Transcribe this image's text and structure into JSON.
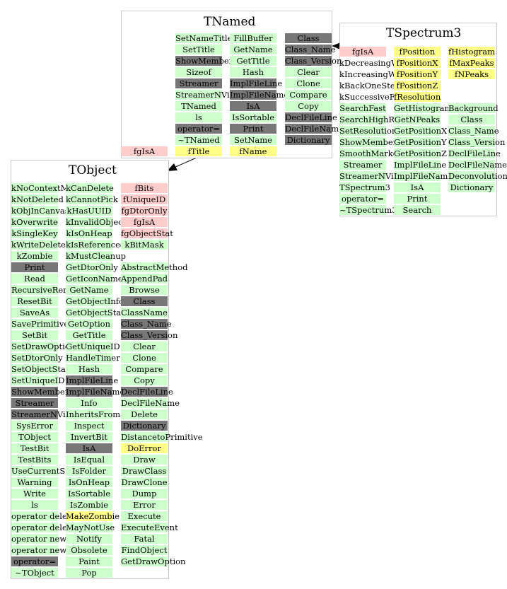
{
  "colors": {
    "method": "#ccffcc",
    "inherited_dark": "#777777",
    "data_member_private": "#ffcccc",
    "data_member": "#ffff88",
    "border": "#c8c8c8"
  },
  "classes": {
    "TNamed": {
      "title": "TNamed",
      "col1": [
        {
          "t": "SetNameTitle",
          "k": "g"
        },
        {
          "t": "SetTitle",
          "k": "g"
        },
        {
          "t": "ShowMembers",
          "k": "d"
        },
        {
          "t": "Sizeof",
          "k": "g"
        },
        {
          "t": "Streamer",
          "k": "d"
        },
        {
          "t": "StreamerNVirtual",
          "k": "g"
        },
        {
          "t": "TNamed",
          "k": "g"
        },
        {
          "t": "ls",
          "k": "g"
        },
        {
          "t": "operator=",
          "k": "d"
        },
        {
          "t": "~TNamed",
          "k": "g"
        }
      ],
      "col2": [
        {
          "t": "FillBuffer",
          "k": "g"
        },
        {
          "t": "GetName",
          "k": "g"
        },
        {
          "t": "GetTitle",
          "k": "g"
        },
        {
          "t": "Hash",
          "k": "g"
        },
        {
          "t": "ImplFileLine",
          "k": "d"
        },
        {
          "t": "ImplFileName",
          "k": "d"
        },
        {
          "t": "IsA",
          "k": "d"
        },
        {
          "t": "IsSortable",
          "k": "g"
        },
        {
          "t": "Print",
          "k": "d"
        },
        {
          "t": "SetName",
          "k": "g"
        }
      ],
      "col3": [
        {
          "t": "Class",
          "k": "d"
        },
        {
          "t": "Class_Name",
          "k": "d"
        },
        {
          "t": "Class_Version",
          "k": "d"
        },
        {
          "t": "Clear",
          "k": "g"
        },
        {
          "t": "Clone",
          "k": "g"
        },
        {
          "t": "Compare",
          "k": "g"
        },
        {
          "t": "Copy",
          "k": "g"
        },
        {
          "t": "DeclFileLine",
          "k": "d"
        },
        {
          "t": "DeclFileName",
          "k": "d"
        },
        {
          "t": "Dictionary",
          "k": "d"
        }
      ],
      "bottom": [
        {
          "t": "fgIsA",
          "k": "r"
        },
        {
          "t": "fTitle",
          "k": "y"
        },
        {
          "t": "fName",
          "k": "y"
        }
      ]
    },
    "TSpectrum3": {
      "title": "TSpectrum3",
      "col1": [
        {
          "t": "fgIsA",
          "k": "r"
        },
        {
          "t": "kDecreasingWindow",
          "k": "n"
        },
        {
          "t": "kIncreasingWindow",
          "k": "n"
        },
        {
          "t": "kBackOneStepFiltering",
          "k": "n"
        },
        {
          "t": "kSuccessiveFiltering",
          "k": "n"
        },
        {
          "t": "SearchFast",
          "k": "g"
        },
        {
          "t": "SearchHighRes",
          "k": "g"
        },
        {
          "t": "SetResolution",
          "k": "g"
        },
        {
          "t": "ShowMembers",
          "k": "g"
        },
        {
          "t": "SmoothMarkov",
          "k": "g"
        },
        {
          "t": "Streamer",
          "k": "g"
        },
        {
          "t": "StreamerNVirtual",
          "k": "g"
        },
        {
          "t": "TSpectrum3",
          "k": "g"
        },
        {
          "t": "operator=",
          "k": "g"
        },
        {
          "t": "~TSpectrum3",
          "k": "g"
        }
      ],
      "col2": [
        {
          "t": "fPosition",
          "k": "y"
        },
        {
          "t": "fPositionX",
          "k": "y"
        },
        {
          "t": "fPositionY",
          "k": "y"
        },
        {
          "t": "fPositionZ",
          "k": "y"
        },
        {
          "t": "fResolution",
          "k": "y"
        },
        {
          "t": "GetHistogram",
          "k": "g"
        },
        {
          "t": "GetNPeaks",
          "k": "g"
        },
        {
          "t": "GetPositionX",
          "k": "g"
        },
        {
          "t": "GetPositionY",
          "k": "g"
        },
        {
          "t": "GetPositionZ",
          "k": "g"
        },
        {
          "t": "ImplFileLine",
          "k": "g"
        },
        {
          "t": "ImplFileName",
          "k": "g"
        },
        {
          "t": "IsA",
          "k": "g"
        },
        {
          "t": "Print",
          "k": "g"
        },
        {
          "t": "Search",
          "k": "g"
        }
      ],
      "col3": [
        {
          "t": "fHistogram",
          "k": "y"
        },
        {
          "t": "fMaxPeaks",
          "k": "y"
        },
        {
          "t": "fNPeaks",
          "k": "y"
        },
        {
          "t": "",
          "k": "n"
        },
        {
          "t": "",
          "k": "n"
        },
        {
          "t": "Background",
          "k": "g"
        },
        {
          "t": "Class",
          "k": "g"
        },
        {
          "t": "Class_Name",
          "k": "g"
        },
        {
          "t": "Class_Version",
          "k": "g"
        },
        {
          "t": "DeclFileLine",
          "k": "g"
        },
        {
          "t": "DeclFileName",
          "k": "g"
        },
        {
          "t": "Deconvolution",
          "k": "g"
        },
        {
          "t": "Dictionary",
          "k": "g"
        }
      ]
    },
    "TObject": {
      "title": "TObject",
      "col1": [
        {
          "t": "kNoContextMenu",
          "k": "g"
        },
        {
          "t": "kNotDeleted",
          "k": "g"
        },
        {
          "t": "kObjInCanvas",
          "k": "g"
        },
        {
          "t": "kOverwrite",
          "k": "g"
        },
        {
          "t": "kSingleKey",
          "k": "g"
        },
        {
          "t": "kWriteDelete",
          "k": "g"
        },
        {
          "t": "kZombie",
          "k": "g"
        },
        {
          "t": "Print",
          "k": "d"
        },
        {
          "t": "Read",
          "k": "g"
        },
        {
          "t": "RecursiveRemove",
          "k": "g"
        },
        {
          "t": "ResetBit",
          "k": "g"
        },
        {
          "t": "SaveAs",
          "k": "g"
        },
        {
          "t": "SavePrimitive",
          "k": "g"
        },
        {
          "t": "SetBit",
          "k": "g"
        },
        {
          "t": "SetDrawOption",
          "k": "g"
        },
        {
          "t": "SetDtorOnly",
          "k": "g"
        },
        {
          "t": "SetObjectStat",
          "k": "g"
        },
        {
          "t": "SetUniqueID",
          "k": "g"
        },
        {
          "t": "ShowMembers",
          "k": "d"
        },
        {
          "t": "Streamer",
          "k": "d"
        },
        {
          "t": "StreamerNVirtual",
          "k": "d"
        },
        {
          "t": "SysError",
          "k": "g"
        },
        {
          "t": "TObject",
          "k": "g"
        },
        {
          "t": "TestBit",
          "k": "g"
        },
        {
          "t": "TestBits",
          "k": "g"
        },
        {
          "t": "UseCurrentStyle",
          "k": "g"
        },
        {
          "t": "Warning",
          "k": "g"
        },
        {
          "t": "Write",
          "k": "g"
        },
        {
          "t": "ls",
          "k": "g"
        },
        {
          "t": "operator delete",
          "k": "g"
        },
        {
          "t": "operator delete[]",
          "k": "g"
        },
        {
          "t": "operator new",
          "k": "g"
        },
        {
          "t": "operator new[]",
          "k": "g"
        },
        {
          "t": "operator=",
          "k": "d"
        },
        {
          "t": "~TObject",
          "k": "g"
        }
      ],
      "col2": [
        {
          "t": "kCanDelete",
          "k": "g"
        },
        {
          "t": "kCannotPick",
          "k": "g"
        },
        {
          "t": "kHasUUID",
          "k": "g"
        },
        {
          "t": "kInvalidObject",
          "k": "g"
        },
        {
          "t": "kIsOnHeap",
          "k": "g"
        },
        {
          "t": "kIsReferenced",
          "k": "g"
        },
        {
          "t": "kMustCleanup",
          "k": "g"
        },
        {
          "t": "GetDtorOnly",
          "k": "g"
        },
        {
          "t": "GetIconName",
          "k": "g"
        },
        {
          "t": "GetName",
          "k": "g"
        },
        {
          "t": "GetObjectInfo",
          "k": "g"
        },
        {
          "t": "GetObjectStat",
          "k": "g"
        },
        {
          "t": "GetOption",
          "k": "g"
        },
        {
          "t": "GetTitle",
          "k": "g"
        },
        {
          "t": "GetUniqueID",
          "k": "g"
        },
        {
          "t": "HandleTimer",
          "k": "g"
        },
        {
          "t": "Hash",
          "k": "g"
        },
        {
          "t": "ImplFileLine",
          "k": "d"
        },
        {
          "t": "ImplFileName",
          "k": "d"
        },
        {
          "t": "Info",
          "k": "g"
        },
        {
          "t": "InheritsFrom",
          "k": "g"
        },
        {
          "t": "Inspect",
          "k": "g"
        },
        {
          "t": "InvertBit",
          "k": "g"
        },
        {
          "t": "IsA",
          "k": "d"
        },
        {
          "t": "IsEqual",
          "k": "g"
        },
        {
          "t": "IsFolder",
          "k": "g"
        },
        {
          "t": "IsOnHeap",
          "k": "g"
        },
        {
          "t": "IsSortable",
          "k": "g"
        },
        {
          "t": "IsZombie",
          "k": "g"
        },
        {
          "t": "MakeZombie",
          "k": "y"
        },
        {
          "t": "MayNotUse",
          "k": "g"
        },
        {
          "t": "Notify",
          "k": "g"
        },
        {
          "t": "Obsolete",
          "k": "g"
        },
        {
          "t": "Paint",
          "k": "g"
        },
        {
          "t": "Pop",
          "k": "g"
        }
      ],
      "col3": [
        {
          "t": "fBits",
          "k": "r"
        },
        {
          "t": "fUniqueID",
          "k": "r"
        },
        {
          "t": "fgDtorOnly",
          "k": "r"
        },
        {
          "t": "fgIsA",
          "k": "r"
        },
        {
          "t": "fgObjectStat",
          "k": "r"
        },
        {
          "t": "kBitMask",
          "k": "g"
        },
        {
          "t": "",
          "k": "n"
        },
        {
          "t": "AbstractMethod",
          "k": "g"
        },
        {
          "t": "AppendPad",
          "k": "g"
        },
        {
          "t": "Browse",
          "k": "g"
        },
        {
          "t": "Class",
          "k": "d"
        },
        {
          "t": "ClassName",
          "k": "g"
        },
        {
          "t": "Class_Name",
          "k": "d"
        },
        {
          "t": "Class_Version",
          "k": "d"
        },
        {
          "t": "Clear",
          "k": "g"
        },
        {
          "t": "Clone",
          "k": "g"
        },
        {
          "t": "Compare",
          "k": "g"
        },
        {
          "t": "Copy",
          "k": "g"
        },
        {
          "t": "DeclFileLine",
          "k": "d"
        },
        {
          "t": "DeclFileName",
          "k": "g"
        },
        {
          "t": "Delete",
          "k": "g"
        },
        {
          "t": "Dictionary",
          "k": "d"
        },
        {
          "t": "DistancetoPrimitive",
          "k": "g"
        },
        {
          "t": "DoError",
          "k": "y"
        },
        {
          "t": "Draw",
          "k": "g"
        },
        {
          "t": "DrawClass",
          "k": "g"
        },
        {
          "t": "DrawClone",
          "k": "g"
        },
        {
          "t": "Dump",
          "k": "g"
        },
        {
          "t": "Error",
          "k": "g"
        },
        {
          "t": "Execute",
          "k": "g"
        },
        {
          "t": "ExecuteEvent",
          "k": "g"
        },
        {
          "t": "Fatal",
          "k": "g"
        },
        {
          "t": "FindObject",
          "k": "g"
        },
        {
          "t": "GetDrawOption",
          "k": "g"
        }
      ]
    }
  }
}
